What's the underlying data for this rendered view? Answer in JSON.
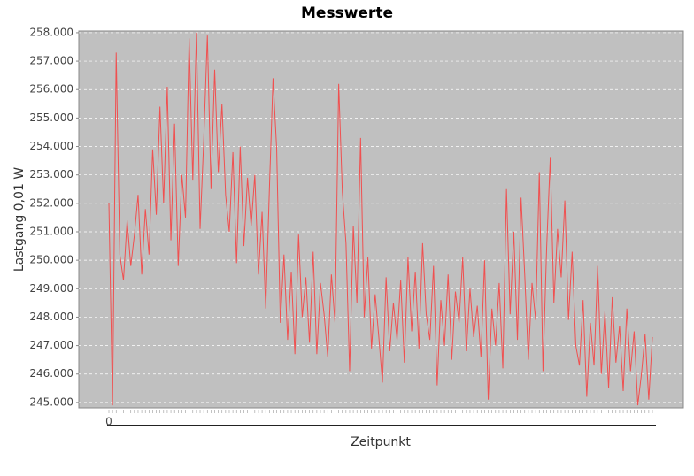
{
  "chart_data": {
    "type": "line",
    "title": "Messwerte",
    "x_label": "Zeitpunkt",
    "y_label": "Lastgang 0,01 W",
    "color": "#f05050",
    "grid": true,
    "ylim": [
      244.81,
      258.06
    ],
    "yticks": [
      {
        "value": 245,
        "label": "245.000"
      },
      {
        "value": 246,
        "label": "246.000"
      },
      {
        "value": 247,
        "label": "247.000"
      },
      {
        "value": 248,
        "label": "248.000"
      },
      {
        "value": 249,
        "label": "249.000"
      },
      {
        "value": 250,
        "label": "250.000"
      },
      {
        "value": 251,
        "label": "251.000"
      },
      {
        "value": 252,
        "label": "252.000"
      },
      {
        "value": 253,
        "label": "253.000"
      },
      {
        "value": 254,
        "label": "254.000"
      },
      {
        "value": 255,
        "label": "255.000"
      },
      {
        "value": 256,
        "label": "256.000"
      },
      {
        "value": 257,
        "label": "257.000"
      },
      {
        "value": 258,
        "label": "258.000"
      }
    ],
    "categories": [
      "0",
      null,
      null,
      null,
      null,
      null,
      null,
      null,
      null,
      null,
      null,
      null,
      null,
      null,
      null,
      null,
      null,
      null,
      null,
      null,
      null,
      null,
      null,
      null,
      null,
      null,
      null,
      null,
      null,
      null,
      null,
      null,
      null,
      null,
      null,
      null,
      null,
      null,
      null,
      null,
      null,
      null,
      null,
      null,
      null,
      null,
      null,
      null,
      null,
      null,
      null,
      null,
      null,
      null,
      null,
      null,
      null,
      null,
      null,
      null,
      null,
      null,
      null,
      null,
      null,
      null,
      null,
      null,
      null,
      null,
      null,
      null,
      null,
      null,
      null,
      null,
      null,
      null,
      null,
      null,
      null,
      null,
      null,
      null,
      null,
      null,
      null,
      null,
      null,
      null,
      null,
      null,
      null,
      null,
      null,
      null,
      null,
      null,
      null,
      null,
      null,
      null,
      null,
      null,
      null,
      null,
      null,
      null,
      null,
      null,
      null,
      null,
      null,
      null,
      null,
      null,
      null,
      null,
      null,
      null,
      null,
      null,
      null,
      null,
      null,
      null,
      null,
      null,
      null,
      null,
      null,
      null,
      null,
      null,
      null,
      null,
      null,
      null,
      null,
      null,
      null,
      null,
      null,
      null,
      null,
      null,
      null,
      null,
      null,
      null
    ],
    "values": [
      252.0,
      244.9,
      257.3,
      250.2,
      249.3,
      251.4,
      249.8,
      250.9,
      252.3,
      249.5,
      251.8,
      250.2,
      253.9,
      251.6,
      255.4,
      252.0,
      256.1,
      250.7,
      254.8,
      249.8,
      253.0,
      251.5,
      257.8,
      252.8,
      258.0,
      251.1,
      254.2,
      257.9,
      252.5,
      256.7,
      253.1,
      255.5,
      252.3,
      251.0,
      253.8,
      249.9,
      254.0,
      250.5,
      252.9,
      251.2,
      253.0,
      249.5,
      251.7,
      248.3,
      252.5,
      256.4,
      253.9,
      247.8,
      250.2,
      247.2,
      249.6,
      246.7,
      250.9,
      248.0,
      249.4,
      247.1,
      250.3,
      246.7,
      249.2,
      248.1,
      246.6,
      249.5,
      247.8,
      256.2,
      252.4,
      250.6,
      246.1,
      251.2,
      248.5,
      254.3,
      248.0,
      250.1,
      246.9,
      248.8,
      247.3,
      245.7,
      249.4,
      246.8,
      248.5,
      247.2,
      249.3,
      246.4,
      250.1,
      247.5,
      249.6,
      246.9,
      250.6,
      248.1,
      247.2,
      249.8,
      245.6,
      248.6,
      247.0,
      249.5,
      246.5,
      248.9,
      247.8,
      250.1,
      246.8,
      249.0,
      247.3,
      248.4,
      246.6,
      250.0,
      245.1,
      248.3,
      247.0,
      249.2,
      246.2,
      252.5,
      248.1,
      251.0,
      247.2,
      252.2,
      249.5,
      246.5,
      249.2,
      247.9,
      253.1,
      246.1,
      250.4,
      253.6,
      248.5,
      251.1,
      249.4,
      252.1,
      247.9,
      250.3,
      247.0,
      246.3,
      248.6,
      245.2,
      247.8,
      246.3,
      249.8,
      246.0,
      248.2,
      245.5,
      248.7,
      246.4,
      247.7,
      245.4,
      248.3,
      246.1,
      247.5,
      244.9,
      246.0,
      247.4,
      245.1,
      247.3
    ]
  }
}
